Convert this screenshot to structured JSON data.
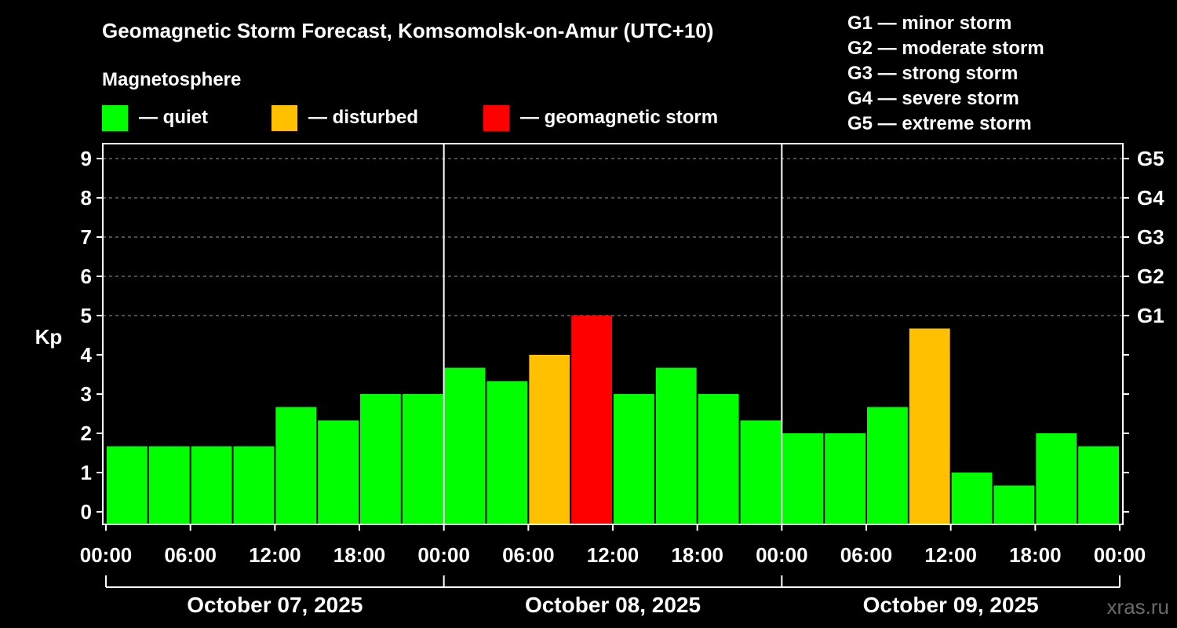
{
  "chart_data": {
    "type": "bar",
    "title": "Geomagnetic Storm Forecast, Komsomolsk-on-Amur (UTC+10)",
    "subtitle": "Magnetosphere",
    "ylabel": "Kp",
    "ylim": [
      0,
      9
    ],
    "y_ticks": [
      "0",
      "1",
      "2",
      "3",
      "4",
      "5",
      "6",
      "7",
      "8",
      "9"
    ],
    "right_ticks": [
      {
        "kp": 5,
        "label": "G1"
      },
      {
        "kp": 6,
        "label": "G2"
      },
      {
        "kp": 7,
        "label": "G3"
      },
      {
        "kp": 8,
        "label": "G4"
      },
      {
        "kp": 9,
        "label": "G5"
      }
    ],
    "x_ticks": [
      "00:00",
      "06:00",
      "12:00",
      "18:00",
      "00:00",
      "06:00",
      "12:00",
      "18:00",
      "00:00",
      "06:00",
      "12:00",
      "18:00",
      "00:00"
    ],
    "days": [
      "October 07, 2025",
      "October 08, 2025",
      "October 09, 2025"
    ],
    "legend": [
      {
        "color": "#00ff00",
        "label": "— quiet"
      },
      {
        "color": "#ffc000",
        "label": "— disturbed"
      },
      {
        "color": "#ff0000",
        "label": "— geomagnetic storm"
      }
    ],
    "storm_scale": [
      "G1 — minor storm",
      "G2 — moderate storm",
      "G3 — strong storm",
      "G4 — severe storm",
      "G5 — extreme storm"
    ],
    "bars": [
      {
        "start_hour": 0,
        "kp": 1.67,
        "level": "quiet"
      },
      {
        "start_hour": 3,
        "kp": 1.67,
        "level": "quiet"
      },
      {
        "start_hour": 6,
        "kp": 1.67,
        "level": "quiet"
      },
      {
        "start_hour": 9,
        "kp": 1.67,
        "level": "quiet"
      },
      {
        "start_hour": 12,
        "kp": 2.67,
        "level": "quiet"
      },
      {
        "start_hour": 15,
        "kp": 2.33,
        "level": "quiet"
      },
      {
        "start_hour": 18,
        "kp": 3.0,
        "level": "quiet"
      },
      {
        "start_hour": 21,
        "kp": 3.0,
        "level": "quiet"
      },
      {
        "start_hour": 24,
        "kp": 3.67,
        "level": "quiet"
      },
      {
        "start_hour": 27,
        "kp": 3.33,
        "level": "quiet"
      },
      {
        "start_hour": 30,
        "kp": 4.0,
        "level": "disturbed"
      },
      {
        "start_hour": 33,
        "kp": 5.0,
        "level": "storm"
      },
      {
        "start_hour": 36,
        "kp": 3.0,
        "level": "quiet"
      },
      {
        "start_hour": 39,
        "kp": 3.67,
        "level": "quiet"
      },
      {
        "start_hour": 42,
        "kp": 3.0,
        "level": "quiet"
      },
      {
        "start_hour": 45,
        "kp": 2.33,
        "level": "quiet"
      },
      {
        "start_hour": 48,
        "kp": 2.0,
        "level": "quiet"
      },
      {
        "start_hour": 51,
        "kp": 2.0,
        "level": "quiet"
      },
      {
        "start_hour": 54,
        "kp": 2.67,
        "level": "quiet"
      },
      {
        "start_hour": 57,
        "kp": 4.67,
        "level": "disturbed"
      },
      {
        "start_hour": 60,
        "kp": 1.0,
        "level": "quiet"
      },
      {
        "start_hour": 63,
        "kp": 0.67,
        "level": "quiet"
      },
      {
        "start_hour": 66,
        "kp": 2.0,
        "level": "quiet"
      },
      {
        "start_hour": 69,
        "kp": 1.67,
        "level": "quiet"
      }
    ],
    "colors": {
      "quiet": "#00ff00",
      "disturbed": "#ffc000",
      "storm": "#ff0000"
    },
    "grid": true,
    "watermark": "xras.ru"
  }
}
